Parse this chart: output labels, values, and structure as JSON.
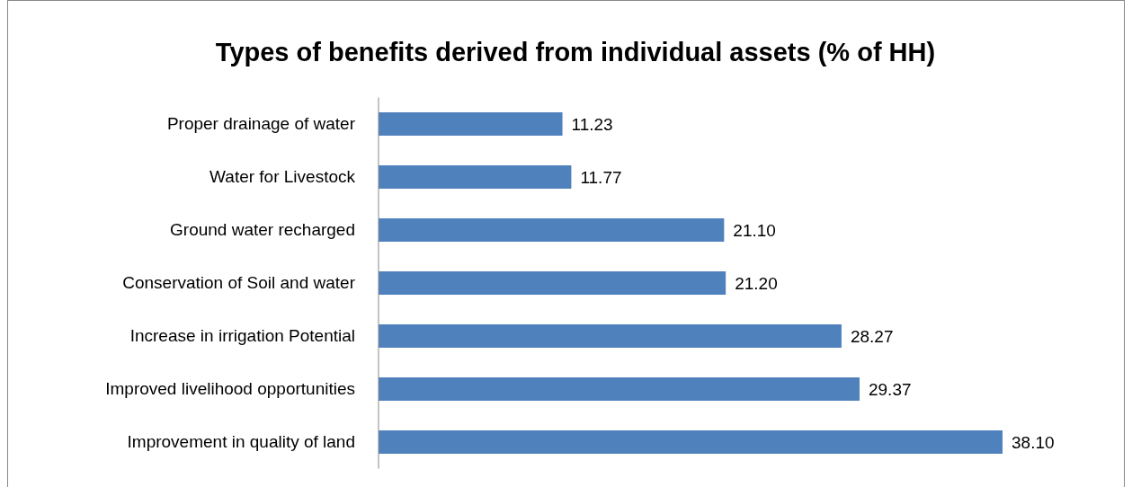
{
  "chart_data": {
    "type": "bar",
    "orientation": "horizontal",
    "title": "Types of benefits derived from individual assets (% of HH)",
    "categories": [
      "Proper drainage of water",
      "Water for Livestock",
      "Ground water recharged",
      "Conservation of Soil and water",
      "Increase in irrigation Potential",
      "Improved livelihood opportunities",
      "Improvement in quality of land"
    ],
    "values": [
      11.23,
      11.77,
      21.1,
      21.2,
      28.27,
      29.37,
      38.1
    ],
    "value_labels": [
      "11.23",
      "11.77",
      "21.10",
      "21.20",
      "28.27",
      "29.37",
      "38.10"
    ],
    "color": "#4f81bd"
  }
}
